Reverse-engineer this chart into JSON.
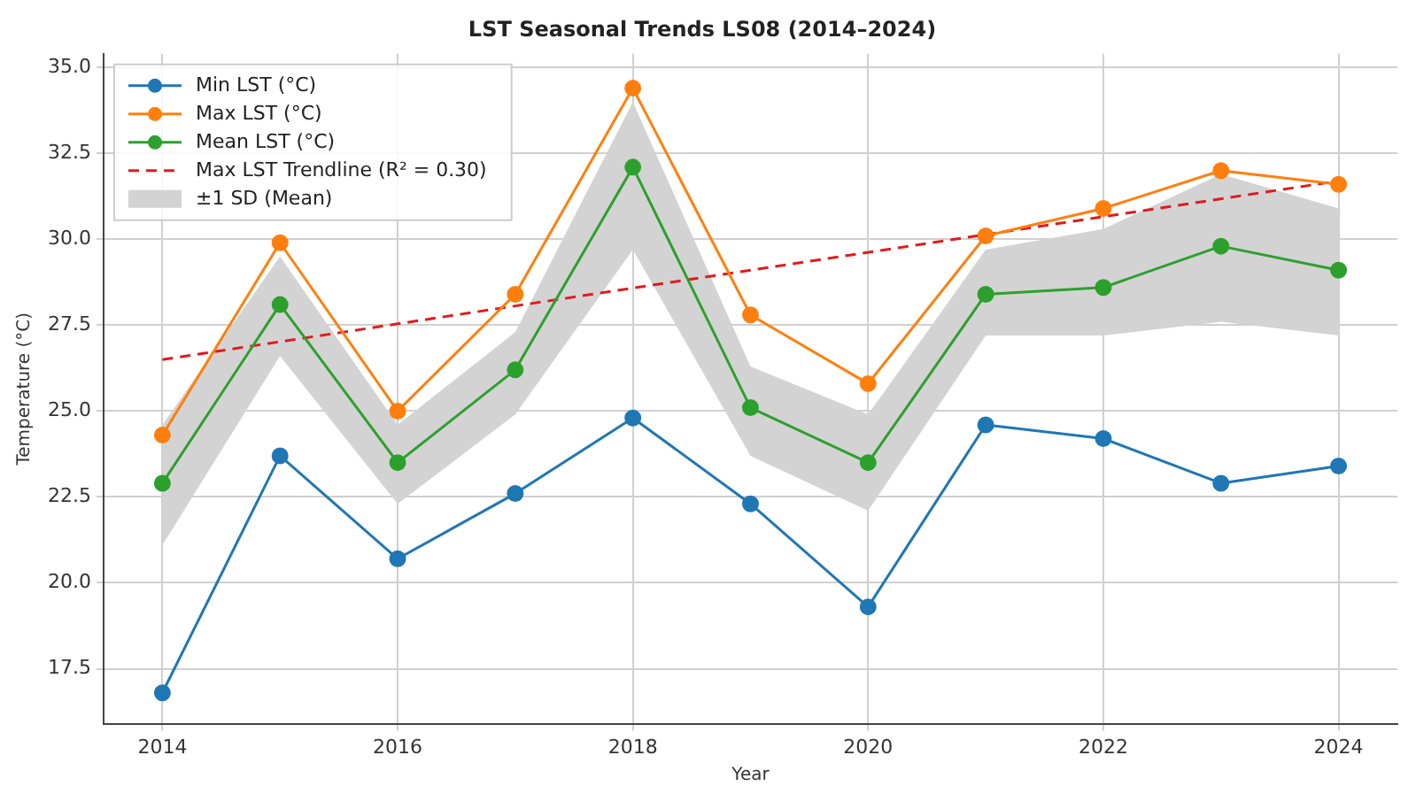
{
  "chart_data": {
    "type": "line",
    "title": "LST Seasonal Trends LS08 (2014–2024)",
    "xlabel": "Year",
    "ylabel": "Temperature (°C)",
    "x": [
      2014,
      2015,
      2016,
      2017,
      2018,
      2019,
      2020,
      2021,
      2022,
      2023,
      2024
    ],
    "series": [
      {
        "name": "Min LST (°C)",
        "color": "#1f77b4",
        "marker": "circle",
        "values": [
          16.8,
          23.7,
          20.7,
          22.6,
          24.8,
          22.3,
          19.3,
          24.6,
          24.2,
          22.9,
          23.4
        ]
      },
      {
        "name": "Max LST (°C)",
        "color": "#ff7f0e",
        "marker": "circle",
        "values": [
          24.3,
          29.9,
          25.0,
          28.4,
          34.4,
          27.8,
          25.8,
          30.1,
          30.9,
          32.0,
          31.6
        ]
      },
      {
        "name": "Mean LST (°C)",
        "color": "#2ca02c",
        "marker": "circle",
        "values": [
          22.9,
          28.1,
          23.5,
          26.2,
          32.1,
          25.1,
          23.5,
          28.4,
          28.6,
          29.8,
          29.1
        ]
      },
      {
        "name": "Max LST Trendline (R² = 0.30)",
        "color": "#e31a1c",
        "marker": "none",
        "line_style": "dashed",
        "x": [
          2014,
          2024
        ],
        "values": [
          26.5,
          31.7
        ]
      },
      {
        "name": "±1 SD (Mean)",
        "color": "#d3d3d3",
        "marker": "none",
        "values": [
          null,
          null,
          null,
          null,
          null,
          null,
          null,
          null,
          null,
          null,
          null
        ],
        "lower": [
          21.1,
          26.6,
          22.3,
          24.9,
          29.7,
          23.7,
          22.1,
          27.2,
          27.2,
          27.6,
          27.2
        ],
        "upper": [
          24.6,
          29.5,
          24.6,
          27.3,
          34.0,
          26.3,
          24.9,
          29.7,
          30.3,
          31.9,
          30.9
        ]
      }
    ],
    "xlim": [
      2013.5,
      2024.5
    ],
    "xticks": [
      2014,
      2016,
      2018,
      2020,
      2022,
      2024
    ],
    "ylim": [
      15.9,
      35.4
    ],
    "yticks": [
      17.5,
      {
        "value": 20,
        "label": "20.0"
      },
      22.5,
      {
        "value": 25,
        "label": "25.0"
      },
      27.5,
      {
        "value": 30,
        "label": "30.0"
      },
      32.5,
      {
        "value": 35,
        "label": "35.0"
      }
    ],
    "grid": true,
    "legend": "top left"
  }
}
